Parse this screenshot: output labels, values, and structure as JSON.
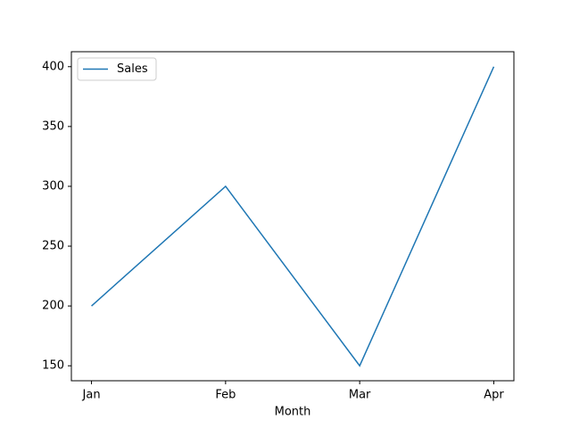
{
  "chart_data": {
    "type": "line",
    "xlabel": "Month",
    "categories": [
      "Jan",
      "Feb",
      "Mar",
      "Apr"
    ],
    "series": [
      {
        "name": "Sales",
        "color": "#1f77b4",
        "values": [
          200,
          300,
          150,
          400
        ]
      }
    ],
    "ylim": [
      137.5,
      412.5
    ],
    "yticks": [
      150,
      200,
      250,
      300,
      350,
      400
    ],
    "grid": false,
    "legend": "upper-left"
  }
}
